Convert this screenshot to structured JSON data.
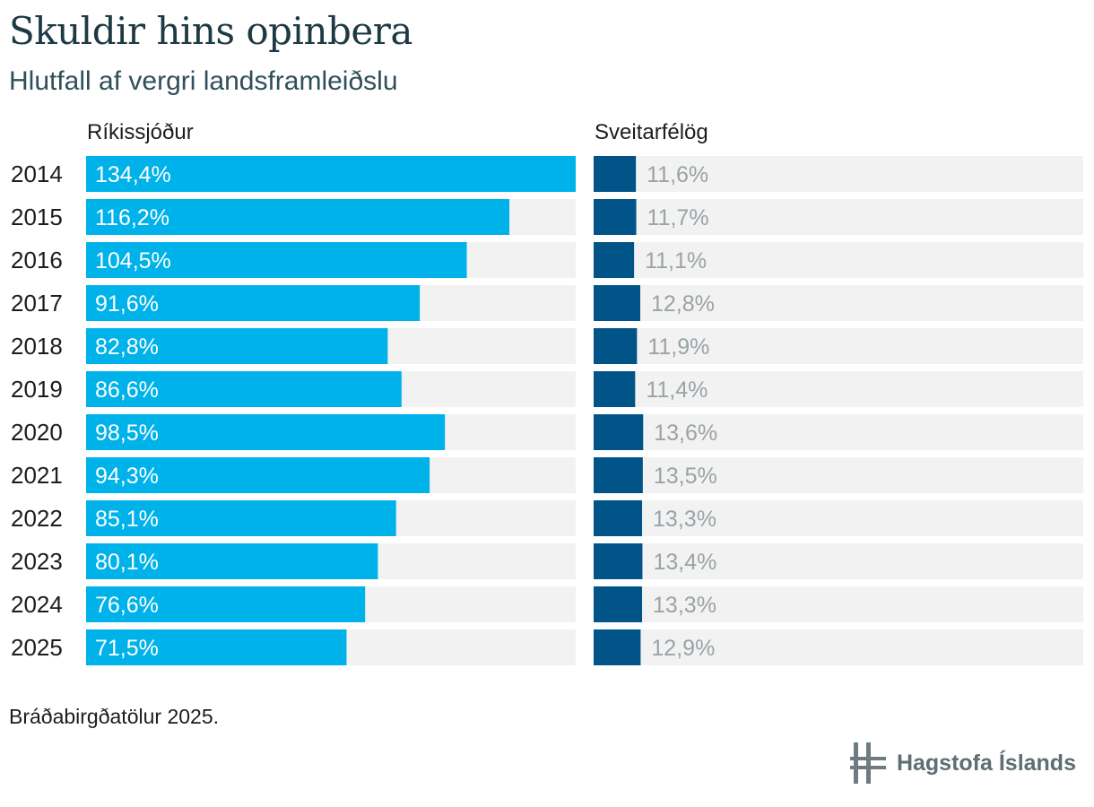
{
  "title": "Skuldir hins opinbera",
  "subtitle": "Hlutfall af vergri landsframleiðslu",
  "footnote": "Bráðabirgðatölur 2025.",
  "brand": "Hagstofa Íslands",
  "colors": {
    "state": "#00b2ea",
    "municipal": "#005488",
    "track": "#f2f2f2",
    "label_on_bar": "#ffffff",
    "label_off_bar": "#9aa3a6",
    "year": "#1d1d1d",
    "logo": "#6e7b80"
  },
  "chart_data": {
    "type": "bar",
    "orientation": "horizontal",
    "categories": [
      "2014",
      "2015",
      "2016",
      "2017",
      "2018",
      "2019",
      "2020",
      "2021",
      "2022",
      "2023",
      "2024",
      "2025"
    ],
    "panels": [
      {
        "name": "Ríkissjóður",
        "values": [
          134.4,
          116.2,
          104.5,
          91.6,
          82.8,
          86.6,
          98.5,
          94.3,
          85.1,
          80.1,
          76.6,
          71.5
        ],
        "labels": [
          "134,4%",
          "116,2%",
          "104,5%",
          "91,6%",
          "82,8%",
          "86,6%",
          "98,5%",
          "94,3%",
          "85,1%",
          "80,1%",
          "76,6%",
          "71,5%"
        ],
        "xlim": [
          0,
          134.4
        ]
      },
      {
        "name": "Sveitarfélög",
        "values": [
          11.6,
          11.7,
          11.1,
          12.8,
          11.9,
          11.4,
          13.6,
          13.5,
          13.3,
          13.4,
          13.3,
          12.9
        ],
        "labels": [
          "11,6%",
          "11,7%",
          "11,1%",
          "12,8%",
          "11,9%",
          "11,4%",
          "13,6%",
          "13,5%",
          "13,3%",
          "13,4%",
          "13,3%",
          "12,9%"
        ],
        "xlim": [
          0,
          134.4
        ]
      }
    ]
  }
}
